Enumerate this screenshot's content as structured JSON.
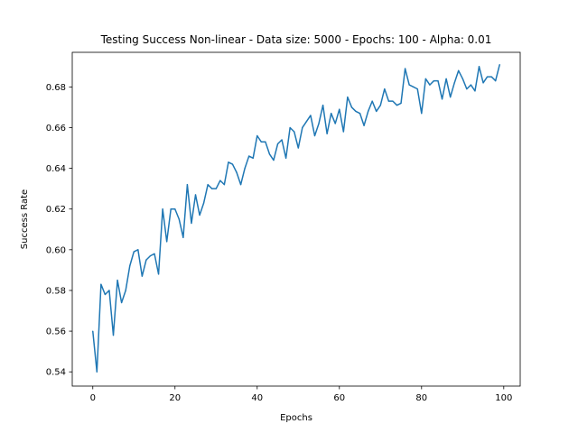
{
  "chart_data": {
    "type": "line",
    "title": "Testing Success Non-linear - Data size: 5000 - Epochs: 100 - Alpha: 0.01",
    "xlabel": "Epochs",
    "ylabel": "Success Rate",
    "xlim": [
      -5,
      104
    ],
    "ylim": [
      0.533,
      0.697
    ],
    "xticks": [
      0,
      20,
      40,
      60,
      80,
      100
    ],
    "yticks": [
      0.54,
      0.56,
      0.58,
      0.6,
      0.62,
      0.64,
      0.66,
      0.68
    ],
    "xtick_labels": [
      "0",
      "20",
      "40",
      "60",
      "80",
      "100"
    ],
    "ytick_labels": [
      "0.54",
      "0.56",
      "0.58",
      "0.60",
      "0.62",
      "0.64",
      "0.66",
      "0.68"
    ],
    "grid": false,
    "series": [
      {
        "name": "success",
        "color": "#1f77b4",
        "x": [
          0,
          1,
          2,
          3,
          4,
          5,
          6,
          7,
          8,
          9,
          10,
          11,
          12,
          13,
          14,
          15,
          16,
          17,
          18,
          19,
          20,
          21,
          22,
          23,
          24,
          25,
          26,
          27,
          28,
          29,
          30,
          31,
          32,
          33,
          34,
          35,
          36,
          37,
          38,
          39,
          40,
          41,
          42,
          43,
          44,
          45,
          46,
          47,
          48,
          49,
          50,
          51,
          52,
          53,
          54,
          55,
          56,
          57,
          58,
          59,
          60,
          61,
          62,
          63,
          64,
          65,
          66,
          67,
          68,
          69,
          70,
          71,
          72,
          73,
          74,
          75,
          76,
          77,
          78,
          79,
          80,
          81,
          82,
          83,
          84,
          85,
          86,
          87,
          88,
          89,
          90,
          91,
          92,
          93,
          94,
          95,
          96,
          97,
          98,
          99
        ],
        "values": [
          0.56,
          0.54,
          0.583,
          0.578,
          0.58,
          0.558,
          0.585,
          0.574,
          0.58,
          0.592,
          0.599,
          0.6,
          0.587,
          0.595,
          0.597,
          0.598,
          0.588,
          0.62,
          0.604,
          0.62,
          0.62,
          0.615,
          0.606,
          0.632,
          0.613,
          0.627,
          0.617,
          0.623,
          0.632,
          0.63,
          0.63,
          0.634,
          0.632,
          0.643,
          0.642,
          0.638,
          0.632,
          0.64,
          0.646,
          0.645,
          0.656,
          0.653,
          0.653,
          0.647,
          0.644,
          0.652,
          0.654,
          0.645,
          0.66,
          0.658,
          0.65,
          0.66,
          0.663,
          0.666,
          0.656,
          0.662,
          0.671,
          0.657,
          0.667,
          0.662,
          0.669,
          0.658,
          0.675,
          0.67,
          0.668,
          0.667,
          0.661,
          0.668,
          0.673,
          0.668,
          0.671,
          0.679,
          0.673,
          0.673,
          0.671,
          0.672,
          0.689,
          0.681,
          0.68,
          0.679,
          0.667,
          0.684,
          0.681,
          0.683,
          0.683,
          0.674,
          0.684,
          0.675,
          0.682,
          0.688,
          0.684,
          0.679,
          0.681,
          0.678,
          0.69,
          0.682,
          0.685,
          0.685,
          0.683,
          0.691
        ]
      }
    ]
  }
}
